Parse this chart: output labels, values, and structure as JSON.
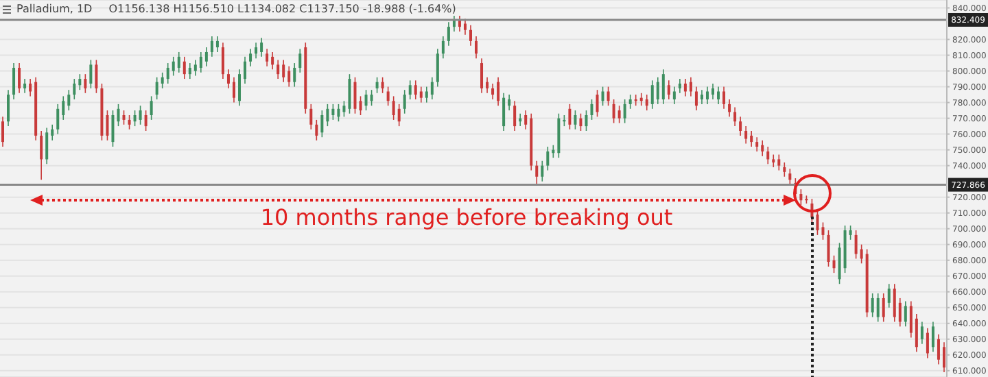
{
  "chart_data": {
    "type": "candlestick",
    "title": "Palladium, 1D",
    "subtitle": "O1156.138 H1156.510 L1134.082 C1137.150 -18.988 (-1.64%)",
    "categories": [
      null,
      null,
      null,
      null,
      null,
      null,
      null,
      null,
      null,
      null,
      null,
      null,
      null,
      null,
      null,
      null,
      null,
      null,
      null,
      null,
      null,
      null,
      null,
      null,
      null,
      null,
      null,
      null,
      null,
      null,
      null,
      null,
      null,
      null,
      null,
      null,
      null,
      null,
      null,
      null,
      null,
      null,
      null,
      null,
      null,
      null,
      null,
      null,
      null,
      null,
      null,
      null,
      null,
      null,
      null,
      null,
      null,
      null,
      null,
      null,
      null,
      null,
      null,
      null,
      null,
      null,
      null,
      null,
      null,
      null,
      null,
      null,
      null,
      null,
      null,
      null,
      null,
      null,
      null,
      null,
      null,
      null,
      null,
      null,
      null,
      null,
      null,
      null,
      null,
      null,
      null,
      null,
      null,
      null,
      null,
      null,
      null,
      null,
      null,
      null,
      null,
      null,
      null,
      null,
      null,
      null,
      null,
      null,
      null,
      null,
      null,
      null,
      null,
      null,
      null,
      null,
      null,
      null,
      null,
      null,
      null,
      null,
      null,
      null,
      null,
      null,
      null,
      null,
      null,
      null,
      null,
      null,
      null,
      null,
      null,
      null,
      null,
      null,
      null,
      null,
      null,
      null,
      null,
      null,
      null,
      null,
      null,
      null,
      null,
      null,
      null,
      null,
      null,
      null,
      null,
      null,
      null,
      null,
      null,
      null,
      null,
      null,
      null,
      null,
      null,
      null,
      null,
      null,
      null,
      null,
      null,
      null
    ],
    "ohlc": [
      [
        768,
        771,
        752,
        755
      ],
      [
        768,
        788,
        765,
        785
      ],
      [
        785,
        805,
        782,
        802
      ],
      [
        802,
        805,
        786,
        789
      ],
      [
        789,
        795,
        786,
        792
      ],
      [
        792,
        795,
        784,
        787
      ],
      [
        793,
        796,
        756,
        759
      ],
      [
        759,
        762,
        731,
        744
      ],
      [
        744,
        764,
        741,
        761
      ],
      [
        759,
        766,
        756,
        763
      ],
      [
        763,
        779,
        760,
        776
      ],
      [
        772,
        784,
        769,
        781
      ],
      [
        778,
        788,
        775,
        785
      ],
      [
        785,
        795,
        782,
        792
      ],
      [
        791,
        798,
        788,
        795
      ],
      [
        795,
        798,
        786,
        789
      ],
      [
        792,
        807,
        789,
        804
      ],
      [
        804,
        807,
        786,
        789
      ],
      [
        789,
        792,
        756,
        759
      ],
      [
        772,
        775,
        756,
        759
      ],
      [
        755,
        775,
        752,
        772
      ],
      [
        768,
        779,
        765,
        776
      ],
      [
        772,
        775,
        766,
        769
      ],
      [
        769,
        772,
        763,
        766
      ],
      [
        768,
        775,
        765,
        772
      ],
      [
        769,
        778,
        766,
        775
      ],
      [
        772,
        775,
        762,
        765
      ],
      [
        772,
        784,
        769,
        781
      ],
      [
        785,
        796,
        782,
        793
      ],
      [
        792,
        799,
        789,
        796
      ],
      [
        795,
        805,
        792,
        802
      ],
      [
        800,
        809,
        797,
        806
      ],
      [
        802,
        812,
        799,
        809
      ],
      [
        806,
        809,
        795,
        798
      ],
      [
        798,
        805,
        795,
        802
      ],
      [
        800,
        807,
        797,
        804
      ],
      [
        802,
        812,
        799,
        809
      ],
      [
        806,
        815,
        803,
        812
      ],
      [
        812,
        822,
        809,
        819
      ],
      [
        815,
        822,
        812,
        819
      ],
      [
        815,
        818,
        795,
        798
      ],
      [
        798,
        801,
        789,
        792
      ],
      [
        793,
        796,
        780,
        783
      ],
      [
        781,
        801,
        778,
        798
      ],
      [
        795,
        809,
        792,
        806
      ],
      [
        806,
        814,
        803,
        811
      ],
      [
        811,
        818,
        808,
        815
      ],
      [
        812,
        821,
        809,
        818
      ],
      [
        811,
        814,
        803,
        806
      ],
      [
        809,
        812,
        801,
        804
      ],
      [
        804,
        807,
        795,
        798
      ],
      [
        804,
        807,
        793,
        796
      ],
      [
        800,
        803,
        790,
        793
      ],
      [
        793,
        805,
        790,
        802
      ],
      [
        802,
        814,
        799,
        811
      ],
      [
        815,
        818,
        773,
        776
      ],
      [
        776,
        779,
        763,
        766
      ],
      [
        766,
        769,
        756,
        759
      ],
      [
        761,
        775,
        758,
        772
      ],
      [
        768,
        779,
        765,
        776
      ],
      [
        772,
        779,
        769,
        776
      ],
      [
        771,
        779,
        768,
        776
      ],
      [
        774,
        781,
        771,
        778
      ],
      [
        776,
        798,
        773,
        795
      ],
      [
        793,
        796,
        773,
        776
      ],
      [
        781,
        784,
        772,
        775
      ],
      [
        778,
        788,
        775,
        785
      ],
      [
        781,
        788,
        778,
        785
      ],
      [
        789,
        796,
        786,
        793
      ],
      [
        793,
        796,
        786,
        789
      ],
      [
        787,
        790,
        778,
        781
      ],
      [
        781,
        784,
        769,
        772
      ],
      [
        776,
        779,
        765,
        768
      ],
      [
        776,
        788,
        773,
        785
      ],
      [
        785,
        794,
        782,
        791
      ],
      [
        791,
        794,
        782,
        785
      ],
      [
        787,
        790,
        780,
        783
      ],
      [
        783,
        790,
        780,
        787
      ],
      [
        785,
        796,
        782,
        793
      ],
      [
        793,
        814,
        790,
        811
      ],
      [
        811,
        822,
        808,
        819
      ],
      [
        819,
        831,
        816,
        828
      ],
      [
        828,
        835,
        825,
        832
      ],
      [
        832,
        835,
        825,
        828
      ],
      [
        830,
        833,
        823,
        826
      ],
      [
        826,
        829,
        816,
        819
      ],
      [
        819,
        822,
        808,
        811
      ],
      [
        805,
        808,
        786,
        789
      ],
      [
        793,
        796,
        786,
        789
      ],
      [
        789,
        792,
        782,
        785
      ],
      [
        793,
        796,
        778,
        781
      ],
      [
        765,
        786,
        762,
        783
      ],
      [
        778,
        785,
        775,
        782
      ],
      [
        778,
        781,
        762,
        765
      ],
      [
        768,
        773,
        765,
        770
      ],
      [
        772,
        775,
        763,
        766
      ],
      [
        770,
        773,
        737,
        740
      ],
      [
        740,
        743,
        728,
        733
      ],
      [
        733,
        743,
        730,
        740
      ],
      [
        740,
        752,
        737,
        749
      ],
      [
        748,
        753,
        745,
        750
      ],
      [
        748,
        773,
        745,
        770
      ],
      [
        768,
        772,
        765,
        769
      ],
      [
        776,
        779,
        763,
        766
      ],
      [
        766,
        775,
        763,
        772
      ],
      [
        770,
        773,
        762,
        765
      ],
      [
        765,
        775,
        762,
        772
      ],
      [
        772,
        782,
        769,
        779
      ],
      [
        785,
        788,
        771,
        774
      ],
      [
        781,
        790,
        778,
        787
      ],
      [
        787,
        790,
        778,
        781
      ],
      [
        779,
        782,
        767,
        770
      ],
      [
        775,
        778,
        767,
        770
      ],
      [
        770,
        782,
        767,
        779
      ],
      [
        779,
        785,
        776,
        782
      ],
      [
        782,
        785,
        778,
        781
      ],
      [
        783,
        786,
        778,
        781
      ],
      [
        782,
        785,
        775,
        778
      ],
      [
        779,
        794,
        776,
        791
      ],
      [
        782,
        796,
        779,
        793
      ],
      [
        782,
        801,
        779,
        798
      ],
      [
        791,
        794,
        782,
        785
      ],
      [
        782,
        790,
        779,
        787
      ],
      [
        789,
        795,
        786,
        792
      ],
      [
        792,
        795,
        784,
        787
      ],
      [
        793,
        796,
        784,
        787
      ],
      [
        787,
        790,
        775,
        778
      ],
      [
        782,
        788,
        779,
        785
      ],
      [
        782,
        790,
        779,
        787
      ],
      [
        785,
        792,
        782,
        789
      ],
      [
        782,
        790,
        779,
        787
      ],
      [
        787,
        790,
        776,
        779
      ],
      [
        779,
        782,
        771,
        774
      ],
      [
        774,
        777,
        765,
        768
      ],
      [
        768,
        771,
        759,
        762
      ],
      [
        762,
        765,
        754,
        757
      ],
      [
        759,
        762,
        752,
        755
      ],
      [
        755,
        758,
        749,
        752
      ],
      [
        753,
        756,
        746,
        749
      ],
      [
        749,
        752,
        741,
        744
      ],
      [
        744,
        747,
        739,
        742
      ],
      [
        744,
        747,
        737,
        740
      ],
      [
        739,
        742,
        733,
        736
      ],
      [
        735,
        738,
        728,
        731
      ],
      [
        729,
        732,
        719,
        722
      ],
      [
        722,
        725,
        715,
        718
      ],
      [
        719,
        721,
        716,
        718
      ],
      [
        716,
        719,
        704,
        707
      ],
      [
        709,
        712,
        696,
        699
      ],
      [
        701,
        704,
        693,
        696
      ],
      [
        696,
        699,
        676,
        679
      ],
      [
        680,
        683,
        672,
        675
      ],
      [
        668,
        691,
        665,
        688
      ],
      [
        675,
        702,
        672,
        699
      ],
      [
        696,
        702,
        693,
        699
      ],
      [
        696,
        699,
        681,
        684
      ],
      [
        687,
        690,
        678,
        681
      ],
      [
        684,
        687,
        644,
        647
      ],
      [
        647,
        659,
        644,
        656
      ],
      [
        644,
        659,
        641,
        656
      ],
      [
        656,
        659,
        641,
        644
      ],
      [
        653,
        665,
        650,
        662
      ],
      [
        662,
        665,
        641,
        644
      ],
      [
        653,
        656,
        638,
        641
      ],
      [
        641,
        654,
        638,
        651
      ],
      [
        651,
        654,
        631,
        634
      ],
      [
        643,
        646,
        622,
        625
      ],
      [
        630,
        641,
        627,
        638
      ],
      [
        634,
        637,
        618,
        621
      ],
      [
        625,
        641,
        622,
        638
      ],
      [
        630,
        633,
        614,
        617
      ],
      [
        625,
        628,
        609,
        612
      ]
    ],
    "ylim": [
      606,
      845
    ],
    "yticks": [
      {
        "value": 610,
        "label": "610.000"
      },
      {
        "value": 620,
        "label": "620.000"
      },
      {
        "value": 630,
        "label": "630.000"
      },
      {
        "value": 640,
        "label": "640.000"
      },
      {
        "value": 650,
        "label": "650.000"
      },
      {
        "value": 660,
        "label": "660.000"
      },
      {
        "value": 670,
        "label": "670.000"
      },
      {
        "value": 680,
        "label": "680.000"
      },
      {
        "value": 690,
        "label": "690.000"
      },
      {
        "value": 700,
        "label": "700.000"
      },
      {
        "value": 710,
        "label": "710.000"
      },
      {
        "value": 720,
        "label": "720.000"
      },
      {
        "value": 740,
        "label": "740.000"
      },
      {
        "value": 750,
        "label": "750.000"
      },
      {
        "value": 760,
        "label": "760.000"
      },
      {
        "value": 770,
        "label": "770.000"
      },
      {
        "value": 780,
        "label": "780.000"
      },
      {
        "value": 790,
        "label": "790.000"
      },
      {
        "value": 800,
        "label": "800.000"
      },
      {
        "value": 810,
        "label": "810.000"
      },
      {
        "value": 820,
        "label": "820.000"
      },
      {
        "value": 840,
        "label": "840.000"
      }
    ],
    "ref_lines": [
      {
        "axis": "y",
        "value": 832.409,
        "label": "832.409",
        "color": "#888888"
      },
      {
        "axis": "y",
        "value": 727.866,
        "label": "727.866",
        "color": "#888888"
      }
    ],
    "annotations": [
      "10 months range before breaking out"
    ],
    "grid": "y",
    "tick_labels": "y"
  }
}
